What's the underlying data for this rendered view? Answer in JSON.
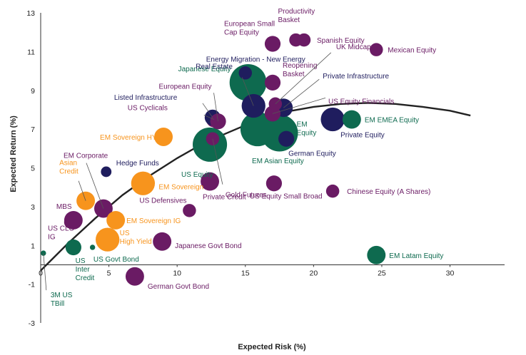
{
  "chart_data": {
    "type": "scatter",
    "xlabel": "Expected Risk (%)",
    "ylabel": "Expected Return (%)",
    "xlim": [
      0,
      34
    ],
    "ylim": [
      -3,
      13
    ],
    "x_ticks": [
      0,
      5,
      10,
      15,
      20,
      25,
      30
    ],
    "y_ticks": [
      -3,
      -1,
      1,
      3,
      5,
      7,
      9,
      11,
      13
    ],
    "grid": false,
    "legend": "none",
    "colors": {
      "purple": "#6a1b64",
      "green": "#0e6a4f",
      "navy": "#1f1d5e",
      "orange": "#f7941d",
      "curve": "#222222"
    },
    "points": [
      {
        "label": "3M US TBill",
        "x": 0.2,
        "y": 0.6,
        "size": 2,
        "color": "green"
      },
      {
        "label": "US CLO IG",
        "x": 2.2,
        "y": 2.2,
        "size": 5,
        "color": "purple"
      },
      {
        "label": "MBS",
        "x": 2.4,
        "y": 2.3,
        "size": 7,
        "color": "purple"
      },
      {
        "label": "US Inter Credit",
        "x": 3.8,
        "y": 0.9,
        "size": 2,
        "color": "green"
      },
      {
        "label": "US Govt Bond",
        "x": 2.4,
        "y": 0.9,
        "size": 6,
        "color": "green"
      },
      {
        "label": "Asian Credit",
        "x": 3.3,
        "y": 3.3,
        "size": 7,
        "color": "orange"
      },
      {
        "label": "EM Corporate",
        "x": 4.6,
        "y": 2.9,
        "size": 7,
        "color": "purple"
      },
      {
        "label": "Hedge Funds",
        "x": 4.8,
        "y": 4.8,
        "size": 4,
        "color": "navy"
      },
      {
        "label": "US High Yield",
        "x": 4.9,
        "y": 1.3,
        "size": 9,
        "color": "orange"
      },
      {
        "label": "EM Sovereign IG",
        "x": 5.5,
        "y": 2.3,
        "size": 7,
        "color": "orange"
      },
      {
        "label": "EM Sovereign",
        "x": 7.5,
        "y": 4.2,
        "size": 9,
        "color": "orange"
      },
      {
        "label": "EM Sovereign HY",
        "x": 9.0,
        "y": 6.6,
        "size": 7,
        "color": "orange"
      },
      {
        "label": "German Govt Bond",
        "x": 6.9,
        "y": -0.6,
        "size": 7,
        "color": "purple"
      },
      {
        "label": "Japanese Govt Bond",
        "x": 8.9,
        "y": 1.2,
        "size": 7,
        "color": "purple"
      },
      {
        "label": "US Defensives",
        "x": 10.9,
        "y": 2.8,
        "size": 5,
        "color": "purple"
      },
      {
        "label": "Private Credit",
        "x": 12.4,
        "y": 4.3,
        "size": 7,
        "color": "purple"
      },
      {
        "label": "US Cyclicals",
        "x": 12.7,
        "y": 7.5,
        "size": 6,
        "color": "purple"
      },
      {
        "label": "Listed Infrastructure",
        "x": 12.6,
        "y": 7.6,
        "size": 6,
        "color": "navy"
      },
      {
        "label": "European Equity",
        "x": 13.0,
        "y": 7.4,
        "size": 6,
        "color": "purple"
      },
      {
        "label": "Gold Futures",
        "x": 12.6,
        "y": 6.5,
        "size": 5,
        "color": "purple"
      },
      {
        "label": "US Equity",
        "x": 12.4,
        "y": 6.2,
        "size": 13,
        "color": "green"
      },
      {
        "label": "Japanese Equity",
        "x": 15.2,
        "y": 9.4,
        "size": 14,
        "color": "green"
      },
      {
        "label": "Energy Migration - New Energy",
        "x": 15.0,
        "y": 9.9,
        "size": 5,
        "color": "navy"
      },
      {
        "label": "European Small Cap Equity",
        "x": 17.0,
        "y": 11.4,
        "size": 6,
        "color": "purple"
      },
      {
        "label": "Real Estate",
        "x": 15.6,
        "y": 8.2,
        "size": 9,
        "color": "navy"
      },
      {
        "label": "EM Asian Equity",
        "x": 15.9,
        "y": 7.0,
        "size": 13,
        "color": "green"
      },
      {
        "label": "EM Equity",
        "x": 17.5,
        "y": 6.8,
        "size": 14,
        "color": "green"
      },
      {
        "label": "US Equity Small Broad",
        "x": 17.1,
        "y": 4.2,
        "size": 6,
        "color": "purple"
      },
      {
        "label": "Reopening Basket",
        "x": 17.0,
        "y": 9.4,
        "size": 6,
        "color": "purple"
      },
      {
        "label": "UK Midcap",
        "x": 17.2,
        "y": 8.3,
        "size": 5,
        "color": "purple"
      },
      {
        "label": "Private Infrastructure",
        "x": 17.8,
        "y": 8.1,
        "size": 7,
        "color": "navy"
      },
      {
        "label": "US Equity Financials",
        "x": 17.0,
        "y": 7.8,
        "size": 6,
        "color": "purple"
      },
      {
        "label": "German Equity",
        "x": 18.0,
        "y": 6.5,
        "size": 6,
        "color": "navy"
      },
      {
        "label": "Productivity Basket",
        "x": 18.7,
        "y": 11.6,
        "size": 5,
        "color": "purple"
      },
      {
        "label": "Spanish Equity",
        "x": 19.3,
        "y": 11.6,
        "size": 5,
        "color": "purple"
      },
      {
        "label": "Private Equity",
        "x": 21.4,
        "y": 7.5,
        "size": 9,
        "color": "navy"
      },
      {
        "label": "EM EMEA Equity",
        "x": 22.8,
        "y": 7.5,
        "size": 7,
        "color": "green"
      },
      {
        "label": "Chinese Equity (A Shares)",
        "x": 21.4,
        "y": 3.8,
        "size": 5,
        "color": "purple"
      },
      {
        "label": "Mexican Equity",
        "x": 24.6,
        "y": 11.1,
        "size": 5,
        "color": "purple"
      },
      {
        "label": "EM Latam Equity",
        "x": 24.6,
        "y": 0.5,
        "size": 7,
        "color": "green"
      }
    ],
    "fit_curve": {
      "x": [
        0,
        2,
        4,
        6,
        8,
        10,
        12,
        14,
        16,
        18,
        20,
        22,
        24,
        26,
        28,
        30,
        31.5
      ],
      "y": [
        -0.3,
        1.1,
        2.4,
        3.6,
        4.6,
        5.5,
        6.3,
        6.9,
        7.5,
        7.9,
        8.15,
        8.3,
        8.35,
        8.3,
        8.15,
        7.95,
        7.7
      ]
    }
  }
}
